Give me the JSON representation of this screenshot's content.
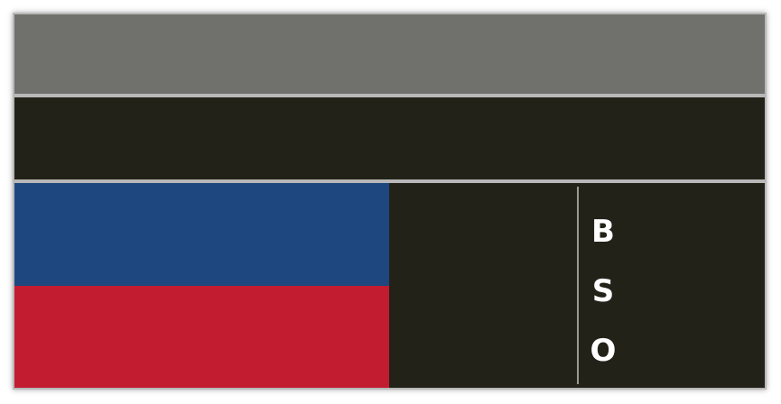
{
  "colors": {
    "top_band": "#70716c",
    "dark_panel": "#222219",
    "divider": "#9a9a92",
    "flag_blue": "#1e4780",
    "flag_red": "#c21c30",
    "label_text": "#ffffff"
  },
  "scoreboard": {
    "balls_label": "B",
    "strikes_label": "S",
    "outs_label": "O"
  }
}
